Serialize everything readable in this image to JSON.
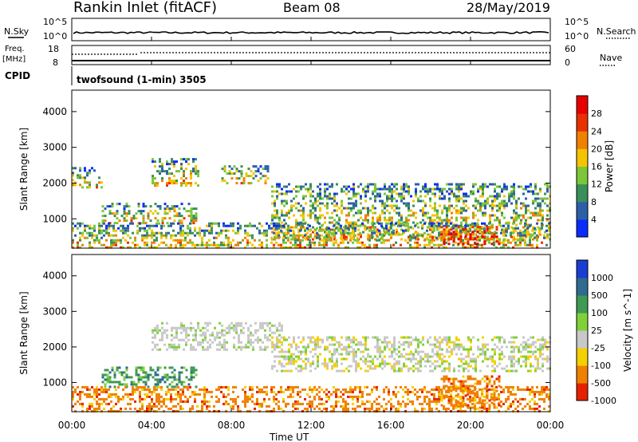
{
  "header": {
    "site": "Rankin Inlet (fitACF)",
    "beam": "Beam 08",
    "date": "28/May/2019"
  },
  "strip1": {
    "left_label": "N.Sky",
    "left_ticks": [
      "10^5",
      "10^0"
    ],
    "right_label": "N.Search",
    "right_ticks": [
      "10^5",
      "10^0"
    ]
  },
  "strip2": {
    "left_label": "Freq.",
    "left_unit": "[MHz]",
    "left_ticks": [
      "18",
      "8"
    ],
    "right_label": "Nave",
    "right_ticks": [
      "60",
      "0"
    ]
  },
  "strip3": {
    "left_label": "CPID",
    "program": "twofsound (1-min) 3505"
  },
  "chart_data": [
    {
      "type": "heatmap",
      "quantity": "Power",
      "ylabel": "Slant Range [km]",
      "yticks": [
        1000,
        2000,
        3000,
        4000
      ],
      "ylim": [
        180,
        4600
      ],
      "xlim": [
        0,
        24
      ],
      "colorbar": {
        "label": "Power [dB]",
        "ticks": [
          "4",
          "8",
          "12",
          "16",
          "20",
          "24",
          "28"
        ],
        "colors": [
          "#0b2cff",
          "#2d5fa8",
          "#3a8f5a",
          "#7cc63a",
          "#f5c400",
          "#f08000",
          "#e83000",
          "#e60000"
        ]
      },
      "echo_regions": [
        {
          "t": [
            0.0,
            1.5
          ],
          "range": [
            1850,
            2450
          ]
        },
        {
          "t": [
            1.5,
            6.3
          ],
          "range": [
            900,
            1450
          ]
        },
        {
          "t": [
            4.0,
            6.3
          ],
          "range": [
            1900,
            2700
          ]
        },
        {
          "t": [
            7.5,
            9.8
          ],
          "range": [
            2000,
            2500
          ]
        },
        {
          "t": [
            10.0,
            24.0
          ],
          "range": [
            400,
            2000
          ]
        },
        {
          "t": [
            0.0,
            24.0
          ],
          "range": [
            200,
            900
          ]
        },
        {
          "t": [
            18.5,
            21.5
          ],
          "range": [
            300,
            800
          ]
        }
      ]
    },
    {
      "type": "heatmap",
      "quantity": "Velocity",
      "ylabel": "Slant Range [km]",
      "yticks": [
        1000,
        2000,
        3000,
        4000
      ],
      "ylim": [
        180,
        4600
      ],
      "xlim": [
        0,
        24
      ],
      "colorbar": {
        "label": "Velocity [m s^-1]",
        "ticks": [
          "1000",
          "500",
          "100",
          "25",
          "-25",
          "-100",
          "-500",
          "-1000"
        ],
        "colors": [
          "#1a3dd4",
          "#2f6a8f",
          "#3e9a52",
          "#7fd13a",
          "#c8c8c8",
          "#f5d000",
          "#f08000",
          "#e62000"
        ]
      },
      "echo_regions": [
        {
          "t": [
            4.0,
            10.5
          ],
          "range": [
            1900,
            2700
          ]
        },
        {
          "t": [
            10.0,
            24.0
          ],
          "range": [
            1300,
            2300
          ]
        },
        {
          "t": [
            1.5,
            6.3
          ],
          "range": [
            900,
            1450
          ]
        },
        {
          "t": [
            0.0,
            24.0
          ],
          "range": [
            200,
            900
          ]
        },
        {
          "t": [
            18.5,
            21.5
          ],
          "range": [
            300,
            1200
          ]
        }
      ]
    }
  ],
  "xaxis": {
    "ticks": [
      "00:00",
      "04:00",
      "08:00",
      "12:00",
      "16:00",
      "20:00",
      "00:00"
    ],
    "label": "Time UT"
  }
}
